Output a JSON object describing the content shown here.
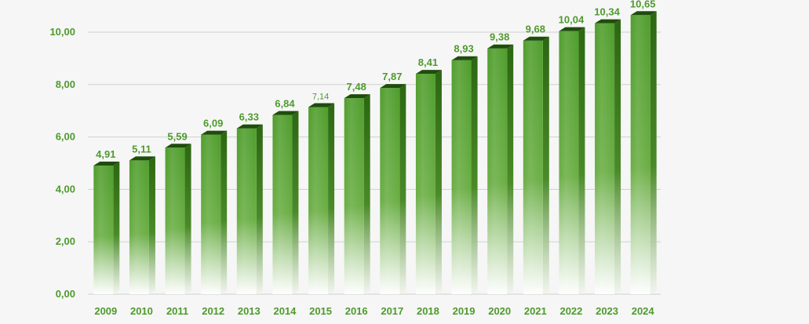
{
  "chart_data": {
    "type": "bar",
    "title": "",
    "xlabel": "",
    "ylabel": "",
    "categories": [
      "2009",
      "2010",
      "2011",
      "2012",
      "2013",
      "2014",
      "2015",
      "2016",
      "2017",
      "2018",
      "2019",
      "2020",
      "2021",
      "2022",
      "2023",
      "2024"
    ],
    "values": [
      4.91,
      5.11,
      5.59,
      6.09,
      6.33,
      6.84,
      7.14,
      7.48,
      7.87,
      8.41,
      8.93,
      9.38,
      9.68,
      10.04,
      10.34,
      10.65
    ],
    "value_labels": [
      "4,91",
      "5,11",
      "5,59",
      "6,09",
      "6,33",
      "6,84",
      "7,14",
      "7,48",
      "7,87",
      "8,41",
      "8,93",
      "9,38",
      "9,68",
      "10,04",
      "10,34",
      "10,65"
    ],
    "ylim": [
      0,
      10
    ],
    "y_ticks": [
      0,
      2,
      4,
      6,
      8,
      10
    ],
    "y_tick_labels": [
      "0,00",
      "2,00",
      "4,00",
      "6,00",
      "8,00",
      "10,00"
    ],
    "grid": true,
    "legend": false,
    "colors": {
      "bar_front": "#4e9a2d",
      "bar_side": "#2f6b14",
      "bar_top": "#1e4d0b",
      "text": "#4e9a2d",
      "grid": "#d0d0d0"
    }
  }
}
